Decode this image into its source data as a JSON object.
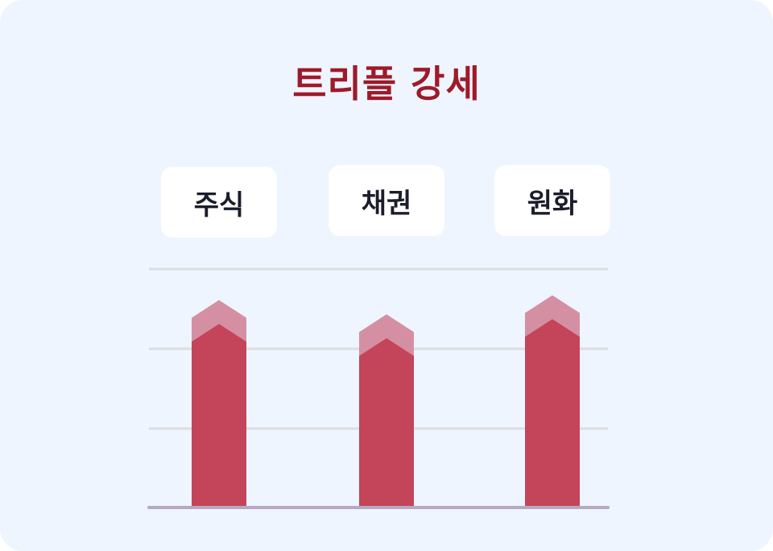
{
  "chart_data": {
    "type": "bar",
    "title": "트리플 강세",
    "categories": [
      "주식",
      "채권",
      "원화"
    ],
    "values": [
      0.87,
      0.81,
      0.89
    ],
    "previous_values": [
      0.77,
      0.71,
      0.79
    ],
    "ylim": [
      0,
      1
    ],
    "grid": true,
    "trend": "up",
    "colors": {
      "bar": "#c4445a",
      "bar_top": "#d490a2",
      "grid": "#dcdde1",
      "baseline": "#b5a9c3",
      "title": "#9e1a2a",
      "background": "#eef5fe"
    }
  }
}
